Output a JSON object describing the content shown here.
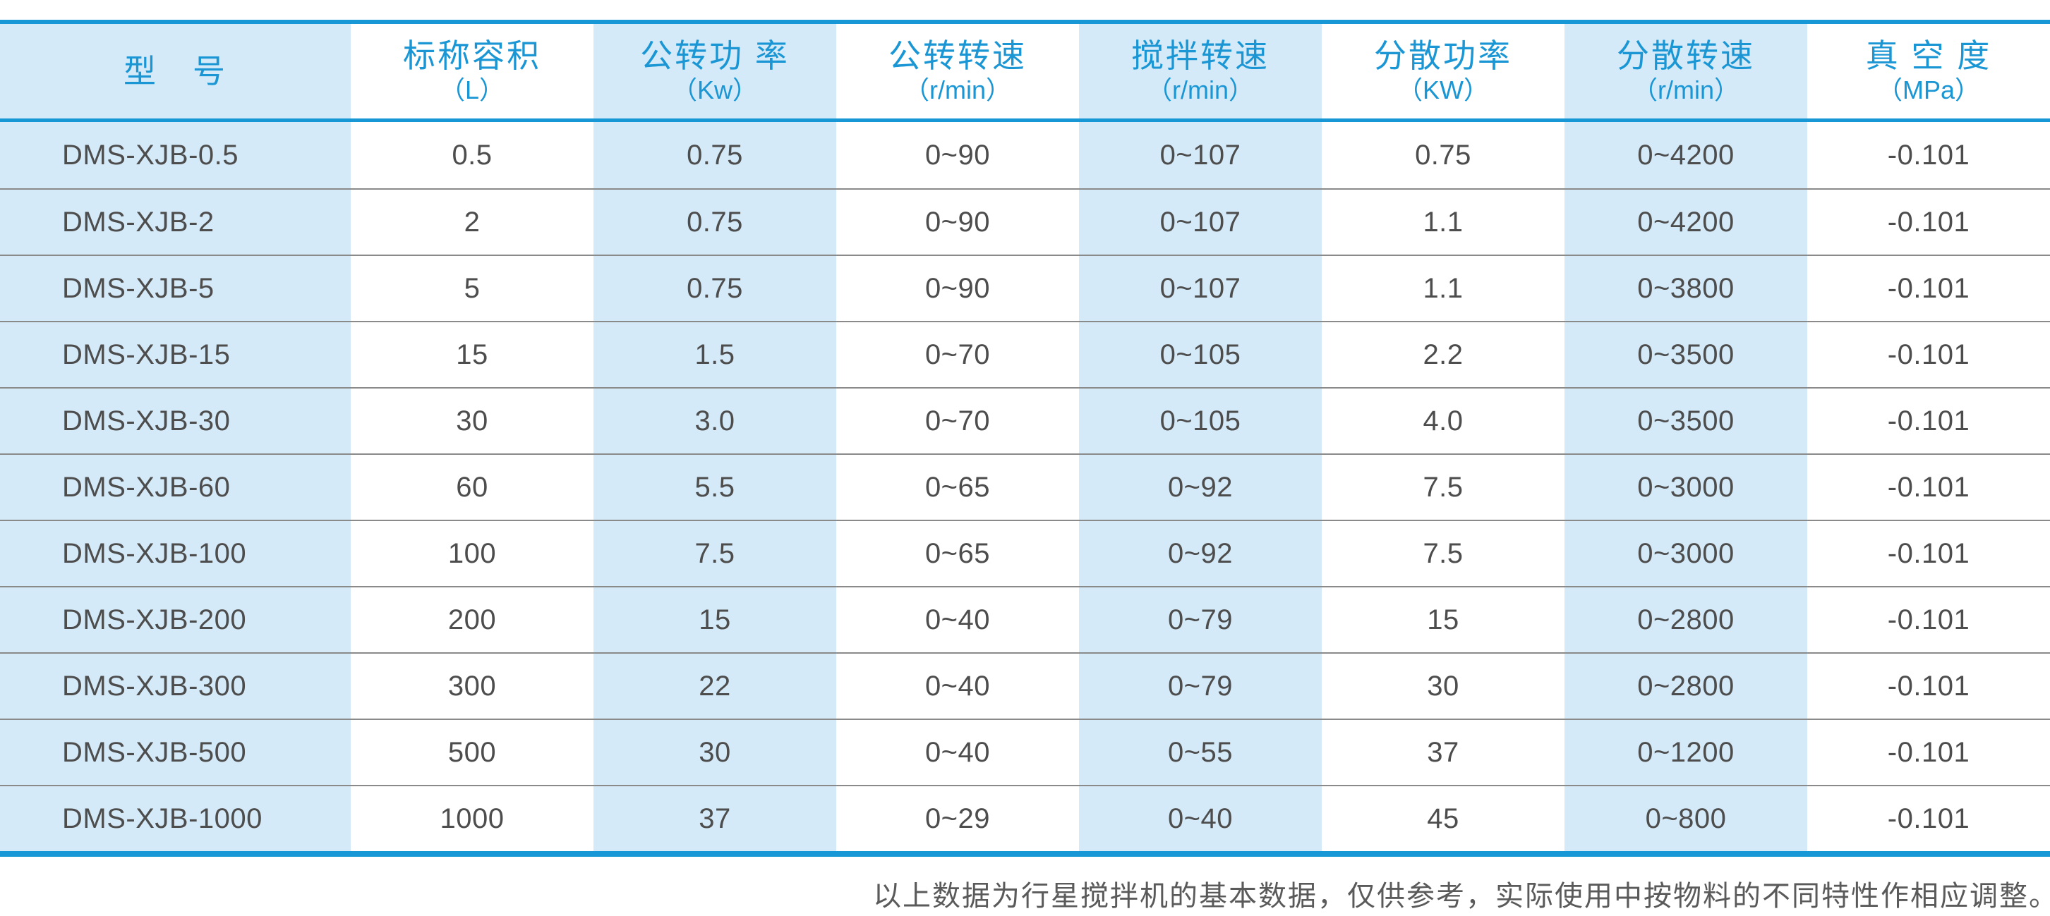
{
  "colors": {
    "accent_blue": "#1897d6",
    "header_text_blue": "#1a96d4",
    "band_light_blue": "#d5eaf8",
    "body_text": "#4d4d4d",
    "row_divider": "#8a8a8a",
    "note_text": "#5a5a5a"
  },
  "table": {
    "columns": [
      {
        "title": "型　号",
        "unit": ""
      },
      {
        "title": "标称容积",
        "unit": "（L）"
      },
      {
        "title": "公转功 率",
        "unit": "（Kw）"
      },
      {
        "title": "公转转速",
        "unit": "（r/min）"
      },
      {
        "title": "搅拌转速",
        "unit": "（r/min）"
      },
      {
        "title": "分散功率",
        "unit": "（KW）"
      },
      {
        "title": "分散转速",
        "unit": "（r/min）"
      },
      {
        "title": "真 空 度",
        "unit": "（MPa）"
      }
    ],
    "rows": [
      [
        "DMS-XJB-0.5",
        "0.5",
        "0.75",
        "0~90",
        "0~107",
        "0.75",
        "0~4200",
        "-0.101"
      ],
      [
        "DMS-XJB-2",
        "2",
        "0.75",
        "0~90",
        "0~107",
        "1.1",
        "0~4200",
        "-0.101"
      ],
      [
        "DMS-XJB-5",
        "5",
        "0.75",
        "0~90",
        "0~107",
        "1.1",
        "0~3800",
        "-0.101"
      ],
      [
        "DMS-XJB-15",
        "15",
        "1.5",
        "0~70",
        "0~105",
        "2.2",
        "0~3500",
        "-0.101"
      ],
      [
        "DMS-XJB-30",
        "30",
        "3.0",
        "0~70",
        "0~105",
        "4.0",
        "0~3500",
        "-0.101"
      ],
      [
        "DMS-XJB-60",
        "60",
        "5.5",
        "0~65",
        "0~92",
        "7.5",
        "0~3000",
        "-0.101"
      ],
      [
        "DMS-XJB-100",
        "100",
        "7.5",
        "0~65",
        "0~92",
        "7.5",
        "0~3000",
        "-0.101"
      ],
      [
        "DMS-XJB-200",
        "200",
        "15",
        "0~40",
        "0~79",
        "15",
        "0~2800",
        "-0.101"
      ],
      [
        "DMS-XJB-300",
        "300",
        "22",
        "0~40",
        "0~79",
        "30",
        "0~2800",
        "-0.101"
      ],
      [
        "DMS-XJB-500",
        "500",
        "30",
        "0~40",
        "0~55",
        "37",
        "0~1200",
        "-0.101"
      ],
      [
        "DMS-XJB-1000",
        "1000",
        "37",
        "0~29",
        "0~40",
        "45",
        "0~800",
        "-0.101"
      ]
    ]
  },
  "footer": {
    "note": "以上数据为行星搅拌机的基本数据，仅供参考，实际使用中按物料的不同特性作相应调整。"
  }
}
